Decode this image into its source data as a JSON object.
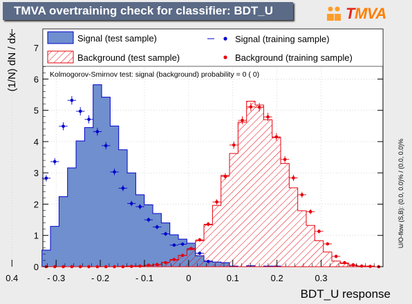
{
  "title": "TMVA overtraining check for classifier: BDT_U",
  "logo": {
    "prefix": "T",
    "rest": "MVA"
  },
  "legend": {
    "signal_test": "Signal (test sample)",
    "background_test": "Background (test sample)",
    "signal_train": "Signal (training sample)",
    "background_train": "Background (training sample)"
  },
  "ks_text": "Kolmogorov-Smirnov test: signal (background) probability =     0 (    0)",
  "overflow_text": "U/O-flow (S,B): (0.0, 0.0)% / (0.0, 0.0)%",
  "colors": {
    "signal_fill": "#6f8fce",
    "signal_line": "#0000cc",
    "background_line": "#e8000b",
    "signal_marker": "#0000cc",
    "background_marker": "#e8000b",
    "plot_bg": "#ffffff",
    "grid": "#c0c0c0"
  },
  "chart_data": {
    "type": "histogram",
    "xlabel": "BDT_U response",
    "ylabel": "(1/N) dN / dx",
    "xlim": [
      -0.44,
      0.33
    ],
    "ylim": [
      0,
      7.6
    ],
    "x_reversed": true,
    "xticks": [
      0.4,
      0.3,
      0.2,
      0.1,
      0,
      -0.1,
      -0.2,
      -0.3
    ],
    "xtick_labels": [
      "0.4",
      "- 0.3",
      "- 0.2",
      "- 0.1",
      "0",
      "0.1",
      "0.2",
      "0.3"
    ],
    "yticks": [
      0,
      1,
      2,
      3,
      4,
      5,
      6,
      7
    ],
    "bin_edges": [
      -0.44,
      -0.4207,
      -0.4014,
      -0.3821,
      -0.3628,
      -0.3435,
      -0.3242,
      -0.3049,
      -0.2856,
      -0.2663,
      -0.247,
      -0.2277,
      -0.2084,
      -0.1891,
      -0.1698,
      -0.1505,
      -0.1312,
      -0.1119,
      -0.0926,
      -0.0733,
      -0.054,
      -0.0347,
      -0.0154,
      0.0039,
      0.0232,
      0.0425,
      0.0618,
      0.0811,
      0.1004,
      0.1197,
      0.139,
      0.1583,
      0.1776,
      0.1969,
      0.2162,
      0.2355,
      0.2548,
      0.2741,
      0.2934,
      0.3127,
      0.332
    ],
    "series": [
      {
        "name": "Signal (test sample)",
        "style": "filled-histogram",
        "values": [
          0,
          0,
          0,
          0,
          0,
          0,
          0,
          0,
          0,
          0,
          0,
          0,
          0.02,
          0.02,
          0,
          0.03,
          0,
          0.02,
          0.13,
          0.15,
          0.18,
          0.35,
          0.75,
          0.88,
          1.02,
          1.4,
          1.7,
          1.98,
          2.3,
          3.0,
          3.74,
          4.5,
          5.42,
          5.82,
          4.45,
          4.02,
          3.16,
          2.24,
          1.29,
          0.53
        ]
      },
      {
        "name": "Background (test sample)",
        "style": "hatched-histogram",
        "values": [
          0,
          0.02,
          0.02,
          0.04,
          0.1,
          0.18,
          0.47,
          0.83,
          1.32,
          1.79,
          2.52,
          3.3,
          4.13,
          4.7,
          5.17,
          5.29,
          4.62,
          3.62,
          2.92,
          1.96,
          1.34,
          0.83,
          0.55,
          0.36,
          0.21,
          0.14,
          0.06,
          0.04,
          0.02,
          0.02,
          0.01,
          0,
          0,
          0,
          0,
          0,
          0,
          0,
          0,
          0
        ]
      },
      {
        "name": "Signal (training sample)",
        "style": "markers",
        "values": [
          null,
          null,
          null,
          null,
          null,
          null,
          null,
          null,
          null,
          null,
          null,
          null,
          null,
          null,
          null,
          null,
          null,
          null,
          null,
          null,
          0.17,
          0.43,
          0.58,
          0.72,
          0.69,
          1.05,
          1.27,
          1.5,
          1.92,
          2.02,
          2.51,
          3.03,
          3.87,
          4.32,
          4.71,
          4.97,
          5.32,
          4.49,
          3.36,
          2.83
        ]
      },
      {
        "name": "Background (training sample)",
        "style": "markers",
        "values": [
          0,
          0.01,
          0.02,
          0.06,
          0.13,
          0.33,
          0.73,
          1.13,
          1.76,
          2.3,
          2.84,
          3.43,
          4.15,
          4.79,
          5.1,
          5.11,
          4.68,
          3.89,
          2.89,
          2.07,
          1.36,
          0.86,
          0.58,
          0.36,
          0.23,
          0.13,
          0.07,
          0.05,
          0.02,
          0.01,
          0,
          0,
          0,
          0,
          0,
          0,
          0,
          0,
          0,
          0
        ]
      }
    ]
  }
}
